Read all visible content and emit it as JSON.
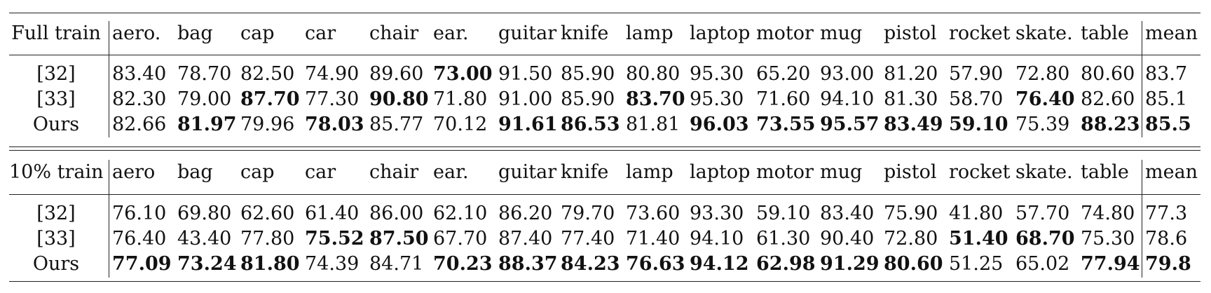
{
  "columns": [
    "aero.",
    "bag",
    "cap",
    "car",
    "chair",
    "ear.",
    "guitar",
    "knife",
    "lamp",
    "laptop",
    "motor",
    "mug",
    "pistol",
    "rocket",
    "skate.",
    "table",
    "mean"
  ],
  "sections": [
    {
      "title": "Full train",
      "columns": [
        "aero.",
        "bag",
        "cap",
        "car",
        "chair",
        "ear.",
        "guitar",
        "knife",
        "lamp",
        "laptop",
        "motor",
        "mug",
        "pistol",
        "rocket",
        "skate.",
        "table",
        "mean"
      ],
      "rows": [
        {
          "method": "[32]",
          "values": [
            "83.40",
            "78.70",
            "82.50",
            "74.90",
            "89.60",
            "73.00",
            "91.50",
            "85.90",
            "80.80",
            "95.30",
            "65.20",
            "93.00",
            "81.20",
            "57.90",
            "72.80",
            "80.60",
            "83.7"
          ],
          "bold": [
            5
          ]
        },
        {
          "method": "[33]",
          "values": [
            "82.30",
            "79.00",
            "87.70",
            "77.30",
            "90.80",
            "71.80",
            "91.00",
            "85.90",
            "83.70",
            "95.30",
            "71.60",
            "94.10",
            "81.30",
            "58.70",
            "76.40",
            "82.60",
            "85.1"
          ],
          "bold": [
            2,
            4,
            8,
            14
          ]
        },
        {
          "method": "Ours",
          "values": [
            "82.66",
            "81.97",
            "79.96",
            "78.03",
            "85.77",
            "70.12",
            "91.61",
            "86.53",
            "81.81",
            "96.03",
            "73.55",
            "95.57",
            "83.49",
            "59.10",
            "75.39",
            "88.23",
            "85.5"
          ],
          "bold": [
            1,
            3,
            6,
            7,
            9,
            10,
            11,
            12,
            13,
            15,
            16
          ]
        }
      ]
    },
    {
      "title": "10% train",
      "columns": [
        "aero",
        "bag",
        "cap",
        "car",
        "chair",
        "ear.",
        "guitar",
        "knife",
        "lamp",
        "laptop",
        "motor",
        "mug",
        "pistol",
        "rocket",
        "skate.",
        "table",
        "mean"
      ],
      "rows": [
        {
          "method": "[32]",
          "values": [
            "76.10",
            "69.80",
            "62.60",
            "61.40",
            "86.00",
            "62.10",
            "86.20",
            "79.70",
            "73.60",
            "93.30",
            "59.10",
            "83.40",
            "75.90",
            "41.80",
            "57.70",
            "74.80",
            "77.3"
          ],
          "bold": []
        },
        {
          "method": "[33]",
          "values": [
            "76.40",
            "43.40",
            "77.80",
            "75.52",
            "87.50",
            "67.70",
            "87.40",
            "77.40",
            "71.40",
            "94.10",
            "61.30",
            "90.40",
            "72.80",
            "51.40",
            "68.70",
            "75.30",
            "78.6"
          ],
          "bold": [
            3,
            4,
            13,
            14
          ]
        },
        {
          "method": "Ours",
          "values": [
            "77.09",
            "73.24",
            "81.80",
            "74.39",
            "84.71",
            "70.23",
            "88.37",
            "84.23",
            "76.63",
            "94.12",
            "62.98",
            "91.29",
            "80.60",
            "51.25",
            "65.02",
            "77.94",
            "79.8"
          ],
          "bold": [
            0,
            1,
            2,
            5,
            6,
            7,
            8,
            9,
            10,
            11,
            12,
            15,
            16
          ]
        }
      ]
    }
  ]
}
